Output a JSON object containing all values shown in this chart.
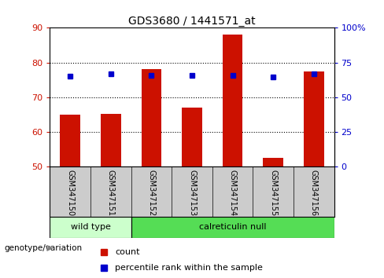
{
  "title": "GDS3680 / 1441571_at",
  "samples": [
    "GSM347150",
    "GSM347151",
    "GSM347152",
    "GSM347153",
    "GSM347154",
    "GSM347155",
    "GSM347156"
  ],
  "count_values": [
    65.0,
    65.2,
    78.0,
    67.0,
    88.0,
    52.5,
    77.5
  ],
  "percentile_values": [
    65.0,
    66.8,
    66.0,
    65.5,
    66.0,
    64.8,
    66.8
  ],
  "y_min": 50,
  "y_max": 90,
  "y_ticks": [
    50,
    60,
    70,
    80,
    90
  ],
  "y2_ticks": [
    0,
    25,
    50,
    75,
    100
  ],
  "bar_color": "#cc1100",
  "dot_color": "#0000cc",
  "grid_color": "#000000",
  "genotype_labels": [
    "wild type",
    "calreticulin null"
  ],
  "wt_count": 2,
  "genotype_bg_light": "#ccffcc",
  "genotype_bg_dark": "#55dd55",
  "sample_bg": "#cccccc",
  "legend_count": "count",
  "legend_pct": "percentile rank within the sample",
  "genotype_label_text": "genotype/variation"
}
